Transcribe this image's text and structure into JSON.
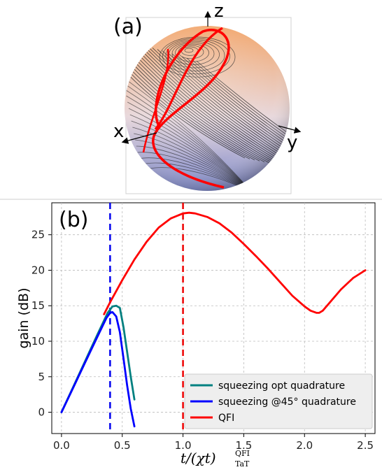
{
  "panel_a": {
    "label": "(a)",
    "axes": {
      "x": "x",
      "y": "y",
      "z": "z"
    },
    "colors": {
      "top": "#f2a66c",
      "bottom": "#7b86c9",
      "curve": "#ff0000",
      "streamlines": "#111111"
    }
  },
  "panel_b": {
    "label": "(b)"
  },
  "chart_data": {
    "type": "line",
    "title": "",
    "xlabel": "t/(χt)",
    "xlabel_sup": "QFI",
    "xlabel_sub": "TaT",
    "ylabel": "gain (dB)",
    "xlim": [
      -0.08,
      2.58
    ],
    "ylim": [
      -3.0,
      29.5
    ],
    "xticks": [
      0.0,
      0.5,
      1.0,
      1.5,
      2.0,
      2.5
    ],
    "xtick_labels": [
      "0.0",
      "0.5",
      "1.0",
      "1.5",
      "2.0",
      "2.5"
    ],
    "yticks": [
      0,
      5,
      10,
      15,
      20,
      25
    ],
    "ytick_labels": [
      "0",
      "5",
      "10",
      "15",
      "20",
      "25"
    ],
    "grid": true,
    "legend_position": "bottom-right",
    "vlines": [
      {
        "x": 0.4,
        "color": "#0000ee",
        "style": "dashed"
      },
      {
        "x": 1.0,
        "color": "#ee0000",
        "style": "dashed"
      }
    ],
    "series": [
      {
        "name": "squeezing opt quadrature",
        "color": "#008080",
        "x": [
          0.0,
          0.1,
          0.2,
          0.3,
          0.38,
          0.42,
          0.45,
          0.48,
          0.51,
          0.54,
          0.57,
          0.6
        ],
        "y": [
          0.0,
          3.7,
          7.4,
          11.1,
          14.0,
          14.9,
          15.0,
          14.7,
          12.0,
          8.5,
          5.0,
          1.8
        ]
      },
      {
        "name": "squeezing @45° quadrature",
        "color": "#0000ff",
        "x": [
          0.0,
          0.1,
          0.2,
          0.3,
          0.37,
          0.4,
          0.42,
          0.45,
          0.48,
          0.51,
          0.54,
          0.57,
          0.6
        ],
        "y": [
          0.0,
          3.6,
          7.2,
          10.8,
          13.3,
          14.0,
          14.1,
          13.5,
          11.3,
          7.6,
          3.8,
          0.5,
          -2.0
        ]
      },
      {
        "name": "QFI",
        "color": "#ff0000",
        "x": [
          0.35,
          0.4,
          0.5,
          0.6,
          0.7,
          0.8,
          0.9,
          1.0,
          1.05,
          1.1,
          1.2,
          1.3,
          1.4,
          1.5,
          1.6,
          1.7,
          1.8,
          1.9,
          2.0,
          2.05,
          2.1,
          2.12,
          2.15,
          2.2,
          2.3,
          2.4,
          2.5
        ],
        "y": [
          13.8,
          15.5,
          18.6,
          21.5,
          24.0,
          26.0,
          27.3,
          28.0,
          28.1,
          28.0,
          27.5,
          26.6,
          25.3,
          23.7,
          22.0,
          20.2,
          18.3,
          16.4,
          14.9,
          14.3,
          14.0,
          14.0,
          14.3,
          15.3,
          17.3,
          18.9,
          20.0
        ]
      }
    ]
  }
}
